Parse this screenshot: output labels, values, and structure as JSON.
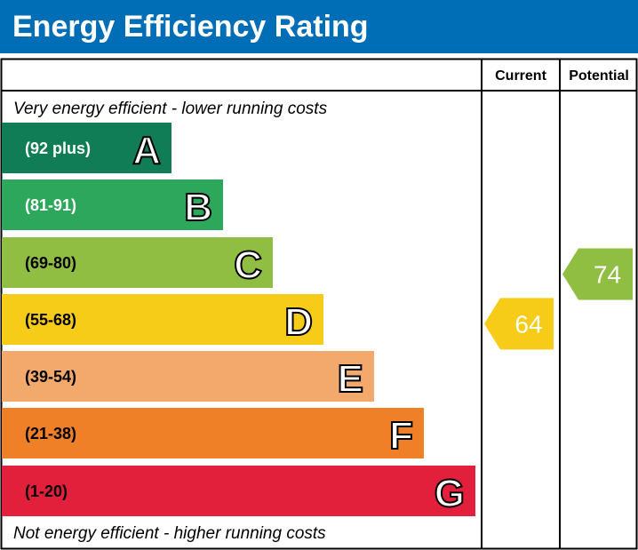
{
  "title": "Energy Efficiency Rating",
  "chart_data": {
    "type": "bar",
    "columns": [
      "Current",
      "Potential"
    ],
    "top_note": "Very energy efficient - lower running costs",
    "bottom_note": "Not energy efficient - higher running costs",
    "bands": [
      {
        "letter": "A",
        "range": "(92 plus)",
        "color": "#117d57"
      },
      {
        "letter": "B",
        "range": "(81-91)",
        "color": "#2ca75b"
      },
      {
        "letter": "C",
        "range": "(69-80)",
        "color": "#8fbe43"
      },
      {
        "letter": "D",
        "range": "(55-68)",
        "color": "#f6cc18"
      },
      {
        "letter": "E",
        "range": "(39-54)",
        "color": "#f3a96b"
      },
      {
        "letter": "F",
        "range": "(21-38)",
        "color": "#ef8028"
      },
      {
        "letter": "G",
        "range": "(1-20)",
        "color": "#e3203c"
      }
    ],
    "current": {
      "value": "64",
      "band": "D",
      "color": "#f6cc18"
    },
    "potential": {
      "value": "74",
      "band": "C",
      "color": "#8fbe43"
    }
  }
}
